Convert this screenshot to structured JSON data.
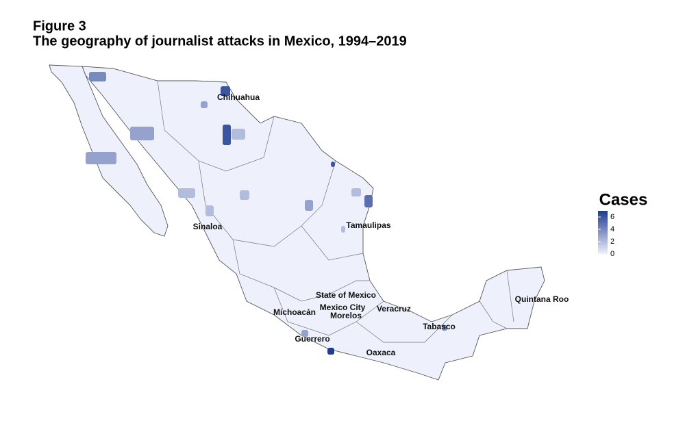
{
  "header": {
    "figure": "Figure 3",
    "title": "The geography of journalist attacks in Mexico, 1994–2019"
  },
  "map": {
    "labels": [
      "Chihuahua",
      "Sinaloa",
      "Tamaulipas",
      "State of Mexico",
      "Mexico City",
      "Morelos",
      "Michoacán",
      "Veracruz",
      "Tabasco",
      "Quintana Roo",
      "Guerrero",
      "Oaxaca"
    ],
    "hotspot_values": [
      6,
      6,
      6,
      5,
      4,
      7,
      3,
      3,
      3,
      2,
      2,
      2,
      3,
      2,
      3,
      2,
      2,
      4
    ],
    "low_color": "#eef0fb",
    "high_color": "#1d3b8f"
  },
  "legend": {
    "title": "Cases",
    "lim": [
      0,
      7
    ],
    "ticks": [
      0,
      2,
      4,
      6
    ]
  }
}
